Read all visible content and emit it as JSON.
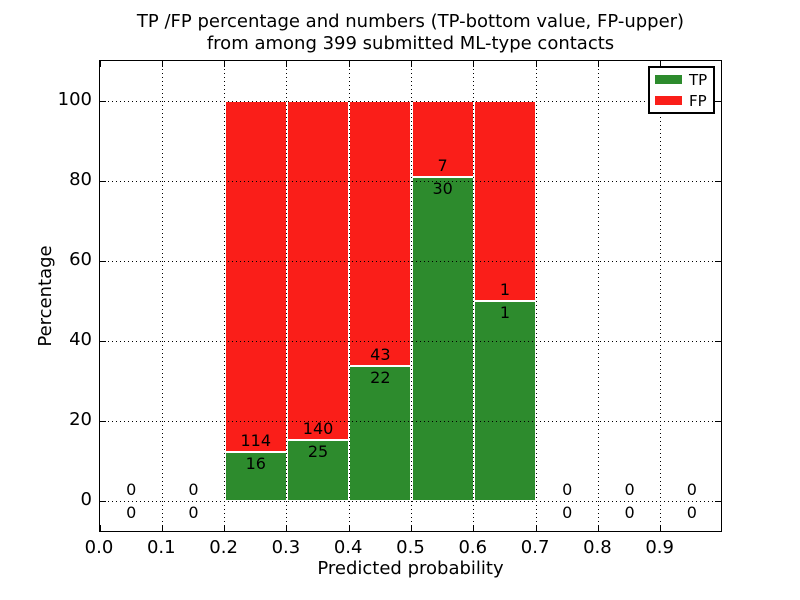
{
  "chart_data": {
    "type": "bar",
    "stacked": true,
    "title_lines": [
      "TP /FP percentage and numbers (TP-bottom value, FP-upper)",
      "from among 399 submitted ML-type contacts"
    ],
    "xlabel": "Predicted probability",
    "ylabel": "Percentage",
    "xlim": [
      0.0,
      1.0
    ],
    "ylim": [
      -8,
      110
    ],
    "x_ticks": [
      "0.0",
      "0.1",
      "0.2",
      "0.3",
      "0.4",
      "0.5",
      "0.6",
      "0.7",
      "0.8",
      "0.9"
    ],
    "y_ticks": [
      "0",
      "20",
      "40",
      "60",
      "80",
      "100"
    ],
    "grid": "dotted",
    "bar_edge_color": "#ffffff",
    "legend": {
      "position": "top-right",
      "items": [
        {
          "label": "TP",
          "color": "#2d8b2d"
        },
        {
          "label": "FP",
          "color": "#fa1e19"
        }
      ]
    },
    "bins": [
      {
        "x_start": 0.0,
        "x_end": 0.1,
        "tp": 0,
        "fp": 0,
        "tp_pct": 0.0,
        "fp_pct": 0.0
      },
      {
        "x_start": 0.1,
        "x_end": 0.2,
        "tp": 0,
        "fp": 0,
        "tp_pct": 0.0,
        "fp_pct": 0.0
      },
      {
        "x_start": 0.2,
        "x_end": 0.3,
        "tp": 16,
        "fp": 114,
        "tp_pct": 12.3,
        "fp_pct": 87.7
      },
      {
        "x_start": 0.3,
        "x_end": 0.4,
        "tp": 25,
        "fp": 140,
        "tp_pct": 15.2,
        "fp_pct": 84.8
      },
      {
        "x_start": 0.4,
        "x_end": 0.5,
        "tp": 22,
        "fp": 43,
        "tp_pct": 33.8,
        "fp_pct": 66.2
      },
      {
        "x_start": 0.5,
        "x_end": 0.6,
        "tp": 30,
        "fp": 7,
        "tp_pct": 81.1,
        "fp_pct": 18.9
      },
      {
        "x_start": 0.6,
        "x_end": 0.7,
        "tp": 1,
        "fp": 1,
        "tp_pct": 50.0,
        "fp_pct": 50.0
      },
      {
        "x_start": 0.7,
        "x_end": 0.8,
        "tp": 0,
        "fp": 0,
        "tp_pct": 0.0,
        "fp_pct": 0.0
      },
      {
        "x_start": 0.8,
        "x_end": 0.9,
        "tp": 0,
        "fp": 0,
        "tp_pct": 0.0,
        "fp_pct": 0.0
      },
      {
        "x_start": 0.9,
        "x_end": 1.0,
        "tp": 0,
        "fp": 0,
        "tp_pct": 0.0,
        "fp_pct": 0.0
      }
    ]
  }
}
